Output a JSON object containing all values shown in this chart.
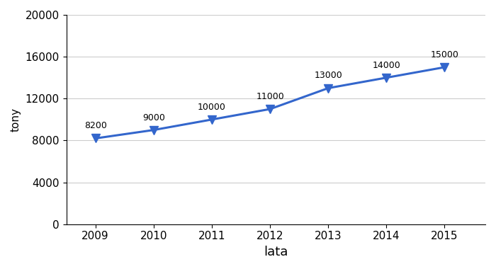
{
  "years": [
    2009,
    2010,
    2011,
    2012,
    2013,
    2014,
    2015
  ],
  "values": [
    8200,
    9000,
    10000,
    11000,
    13000,
    14000,
    15000
  ],
  "xlabel": "lata",
  "ylabel": "tony",
  "ylim": [
    0,
    20000
  ],
  "yticks": [
    0,
    4000,
    8000,
    12000,
    16000,
    20000
  ],
  "line_color": "#3366CC",
  "marker_color": "#3366CC",
  "marker": "v",
  "markersize": 8,
  "linewidth": 2.2,
  "annotation_fontsize": 9,
  "axis_fontsize": 11,
  "xlabel_fontsize": 13,
  "ylabel_fontsize": 11,
  "bg_color": "#ffffff",
  "grid_color": "#cccccc"
}
